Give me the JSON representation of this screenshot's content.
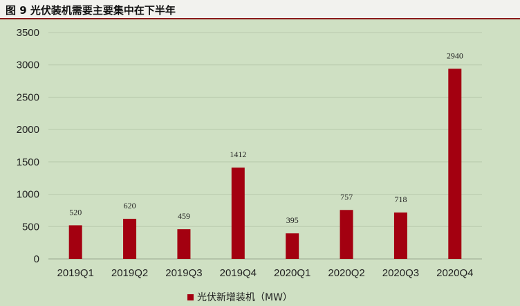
{
  "title": "图 9 光伏装机需要主要集中在下半年",
  "colors": {
    "bar": "#a30010",
    "background": "#cfe0c3",
    "grid": "#b8c9ac",
    "title_rule": "#8b1a1a"
  },
  "chart_data": {
    "type": "bar",
    "categories": [
      "2019Q1",
      "2019Q2",
      "2019Q3",
      "2019Q4",
      "2020Q1",
      "2020Q2",
      "2020Q3",
      "2020Q4"
    ],
    "series": [
      {
        "name": "光伏新增装机（MW）",
        "values": [
          520,
          620,
          459,
          1412,
          395,
          757,
          718,
          2940
        ]
      }
    ],
    "data_labels": [
      "520",
      "620",
      "459",
      "1412",
      "395",
      "757",
      "718",
      "2940"
    ],
    "y_ticks": [
      "0",
      "500",
      "1000",
      "1500",
      "2000",
      "2500",
      "3000",
      "3500"
    ],
    "ylim": [
      0,
      3500
    ],
    "grid": true,
    "legend_position": "bottom-center"
  }
}
